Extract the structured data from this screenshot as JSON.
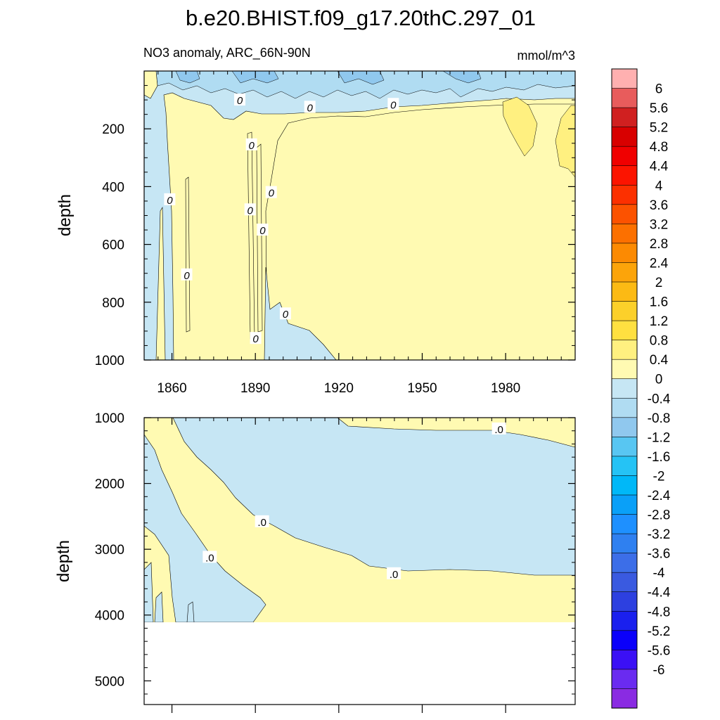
{
  "title": "b.e20.BHIST.f09_g17.20thC.297_01",
  "subtitle_left": "NO3 anomaly, ARC_66N-90N",
  "subtitle_right": "mmol/m^3",
  "chart_data": [
    {
      "type": "contour",
      "panel": "upper",
      "ylabel": "depth",
      "xlabel": "",
      "xlim": [
        1850,
        2005
      ],
      "ylim": [
        1000,
        0
      ],
      "xticks": [
        1860,
        1890,
        1920,
        1950,
        1980
      ],
      "xtick_labels": [
        "1860",
        "1890",
        "1920",
        "1950",
        "1980"
      ],
      "yticks": [
        200,
        400,
        600,
        800,
        1000
      ],
      "ytick_labels": [
        "200",
        "400",
        "600",
        "800",
        "1000"
      ],
      "contour_labels": [
        {
          "text": "0",
          "x": 1884.4,
          "y": 100
        },
        {
          "text": "0",
          "x": 1909.6,
          "y": 125
        },
        {
          "text": "0",
          "x": 1939.6,
          "y": 115
        },
        {
          "text": "0",
          "x": 1888.6,
          "y": 255
        },
        {
          "text": "0",
          "x": 1859.2,
          "y": 445
        },
        {
          "text": "0",
          "x": 1895.7,
          "y": 420
        },
        {
          "text": "0",
          "x": 1888.1,
          "y": 480
        },
        {
          "text": "0",
          "x": 1892.6,
          "y": 550
        },
        {
          "text": "0",
          "x": 1865.3,
          "y": 705
        },
        {
          "text": "0",
          "x": 1900.8,
          "y": 840
        },
        {
          "text": "0",
          "x": 1890.1,
          "y": 925
        }
      ]
    },
    {
      "type": "contour",
      "panel": "lower",
      "ylabel": "depth",
      "xlabel": "",
      "xlim": [
        1850,
        2005
      ],
      "ylim": [
        5360,
        1000
      ],
      "yticks": [
        1000,
        2000,
        3000,
        4000,
        5000
      ],
      "ytick_labels": [
        "1000",
        "2000",
        "3000",
        "4000",
        "5000"
      ],
      "data_bottom_depth": 4120,
      "contour_labels": [
        {
          "text": ".0",
          "x": 1977.6,
          "y": 1170
        },
        {
          "text": ".0",
          "x": 1892.4,
          "y": 2580
        },
        {
          "text": ".0",
          "x": 1873.6,
          "y": 3120
        },
        {
          "text": ".0",
          "x": 1939.8,
          "y": 3370
        }
      ]
    }
  ],
  "colorbar": {
    "colors": [
      "#8a2be2",
      "#6a2bf0",
      "#3b10f5",
      "#0a00fa",
      "#1a20ee",
      "#2d40e0",
      "#3a5ae0",
      "#3c6ee8",
      "#2f80f0",
      "#1e90ff",
      "#0aa0f8",
      "#00b8f8",
      "#25c3f5",
      "#58c6f2",
      "#90c8ee",
      "#b0dcf2",
      "#c6e6f4",
      "#fffab2",
      "#fff080",
      "#ffe040",
      "#fcd02a",
      "#fcba14",
      "#fca40a",
      "#fc8a02",
      "#fc7000",
      "#fc5200",
      "#fc3000",
      "#fc1400",
      "#f00000",
      "#d80000",
      "#d02020",
      "#e85c5c",
      "#ffb0b0"
    ],
    "labels": [
      "-6",
      "-5.6",
      "-5.2",
      "-4.8",
      "-4.4",
      "-4",
      "-3.6",
      "-3.2",
      "-2.8",
      "-2.4",
      "-2",
      "-1.6",
      "-1.2",
      "-0.8",
      "-0.4",
      "0",
      "0.4",
      "0.8",
      "1.2",
      "1.6",
      "2",
      "2.4",
      "2.8",
      "3.2",
      "3.6",
      "4",
      "4.4",
      "4.8",
      "5.2",
      "5.6",
      "6"
    ]
  },
  "palette": {
    "neg_light": "#c6e6f4",
    "neg_mid": "#b0dcf2",
    "neg_deep": "#90c8ee",
    "pos_light": "#fffab2",
    "pos_mid": "#fff080"
  }
}
